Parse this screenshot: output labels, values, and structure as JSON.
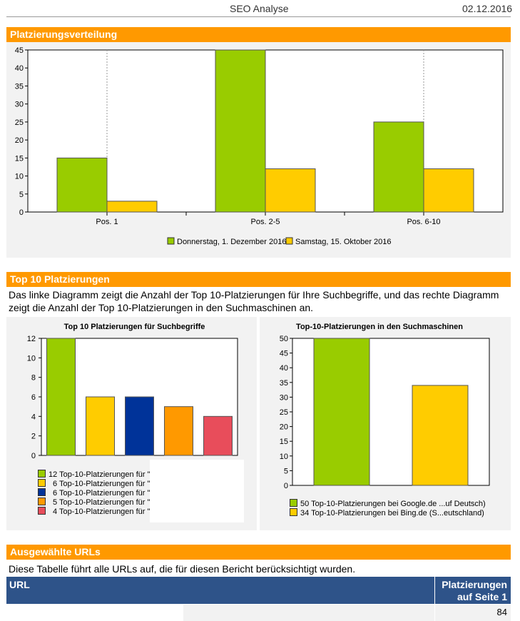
{
  "header": {
    "title": "SEO Analyse",
    "date": "02.12.2016"
  },
  "sections": {
    "placement": {
      "title": "Platzierungsverteilung"
    },
    "top10": {
      "title": "Top 10 Platzierungen",
      "description": "Das linke Diagramm zeigt die Anzahl der Top 10-Platzierungen für Ihre Suchbegriffe, und das rechte Diagramm zeigt die Anzahl der Top 10-Platzierungen in den Suchmaschinen an."
    },
    "urls": {
      "title": "Ausgewählte URLs",
      "description": "Diese Tabelle führt alle URLs auf, die für diesen Bericht berücksichtigt wurden.",
      "columns": [
        "URL",
        "Platzierungen auf Seite 1"
      ],
      "rows": [
        {
          "url": "",
          "count": "84"
        }
      ]
    }
  },
  "colors": {
    "green": "#99cc00",
    "yellow": "#ffcc00",
    "blue": "#003399",
    "orange": "#ff9900",
    "red": "#e84d5b",
    "header_orange": "#ff9900",
    "table_header": "#2e5389"
  },
  "chart_data": [
    {
      "type": "bar",
      "title": "",
      "categories": [
        "Pos. 1",
        "Pos. 2-5",
        "Pos. 6-10"
      ],
      "series": [
        {
          "name": "Donnerstag, 1. Dezember 2016",
          "values": [
            15,
            45,
            25
          ],
          "color": "#99cc00"
        },
        {
          "name": "Samstag, 15. Oktober 2016",
          "values": [
            3,
            12,
            12
          ],
          "color": "#ffcc00"
        }
      ],
      "ylim": [
        0,
        45
      ],
      "yticks": [
        0,
        5,
        10,
        15,
        20,
        25,
        30,
        35,
        40,
        45
      ],
      "legend": "bottom"
    },
    {
      "type": "bar",
      "title": "Top 10 Platzierungen für Suchbegriffe",
      "values": [
        12,
        6,
        6,
        5,
        4
      ],
      "colors": [
        "#99cc00",
        "#ffcc00",
        "#003399",
        "#ff9900",
        "#e84d5b"
      ],
      "legend_labels": [
        "12 Top-10-Platzierungen für \"",
        "6 Top-10-Platzierungen für \"",
        "6 Top-10-Platzierungen für \"",
        "5 Top-10-Platzierungen für \"",
        "4 Top-10-Platzierungen für \""
      ],
      "ylim": [
        0,
        12
      ],
      "yticks": [
        0,
        2,
        4,
        6,
        8,
        10,
        12
      ],
      "legend": "bottom"
    },
    {
      "type": "bar",
      "title": "Top-10-Platzierungen in den Suchmaschinen",
      "values": [
        50,
        34
      ],
      "colors": [
        "#99cc00",
        "#ffcc00"
      ],
      "legend_labels": [
        "50 Top-10-Platzierungen bei Google.de ...uf Deutsch)",
        "34 Top-10-Platzierungen bei Bing.de (S...eutschland)"
      ],
      "ylim": [
        0,
        50
      ],
      "yticks": [
        0,
        5,
        10,
        15,
        20,
        25,
        30,
        35,
        40,
        45,
        50
      ],
      "legend": "bottom"
    }
  ]
}
